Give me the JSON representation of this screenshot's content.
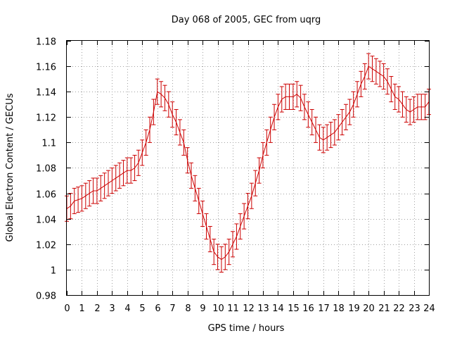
{
  "chart_data": {
    "type": "line",
    "title": "Day 068 of 2005, GEC from uqrg",
    "xlabel": "GPS time / hours",
    "ylabel": "Global Electron Content / GECUs",
    "xlim": [
      0,
      24
    ],
    "ylim": [
      0.98,
      1.18
    ],
    "xticks": [
      "0",
      "1",
      "2",
      "3",
      "4",
      "5",
      "6",
      "7",
      "8",
      "9",
      "10",
      "11",
      "12",
      "13",
      "14",
      "15",
      "16",
      "17",
      "18",
      "19",
      "20",
      "21",
      "22",
      "23",
      "24"
    ],
    "yticks": [
      "0.98",
      "1",
      "1.02",
      "1.04",
      "1.06",
      "1.08",
      "1.1",
      "1.12",
      "1.14",
      "1.16",
      "1.18"
    ],
    "grid": true,
    "legend": "none",
    "error_bars": true,
    "series_color": "#cc0000",
    "series": [
      {
        "x": [
          0,
          0.25,
          0.5,
          0.75,
          1,
          1.25,
          1.5,
          1.75,
          2,
          2.25,
          2.5,
          2.75,
          3,
          3.25,
          3.5,
          3.75,
          4,
          4.25,
          4.5,
          4.75,
          5,
          5.25,
          5.5,
          5.75,
          6,
          6.25,
          6.5,
          6.75,
          7,
          7.25,
          7.5,
          7.75,
          8,
          8.25,
          8.5,
          8.75,
          9,
          9.25,
          9.5,
          9.75,
          10,
          10.25,
          10.5,
          10.75,
          11,
          11.25,
          11.5,
          11.75,
          12,
          12.25,
          12.5,
          12.75,
          13,
          13.25,
          13.5,
          13.75,
          14,
          14.25,
          14.5,
          14.75,
          15,
          15.25,
          15.5,
          15.75,
          16,
          16.25,
          16.5,
          16.75,
          17,
          17.25,
          17.5,
          17.75,
          18,
          18.25,
          18.5,
          18.75,
          19,
          19.25,
          19.5,
          19.75,
          20,
          20.25,
          20.5,
          20.75,
          21,
          21.25,
          21.5,
          21.75,
          22,
          22.25,
          22.5,
          22.75,
          23,
          23.25,
          23.5,
          23.75,
          24
        ],
        "values": [
          1.048,
          1.05,
          1.054,
          1.055,
          1.056,
          1.058,
          1.06,
          1.062,
          1.062,
          1.064,
          1.066,
          1.068,
          1.07,
          1.072,
          1.074,
          1.076,
          1.078,
          1.078,
          1.08,
          1.084,
          1.092,
          1.1,
          1.11,
          1.124,
          1.14,
          1.138,
          1.135,
          1.13,
          1.122,
          1.116,
          1.108,
          1.1,
          1.086,
          1.074,
          1.064,
          1.054,
          1.044,
          1.034,
          1.024,
          1.014,
          1.01,
          1.008,
          1.01,
          1.014,
          1.02,
          1.026,
          1.034,
          1.042,
          1.05,
          1.058,
          1.068,
          1.078,
          1.09,
          1.1,
          1.11,
          1.12,
          1.128,
          1.134,
          1.136,
          1.136,
          1.136,
          1.138,
          1.135,
          1.128,
          1.122,
          1.116,
          1.11,
          1.104,
          1.102,
          1.104,
          1.106,
          1.108,
          1.112,
          1.116,
          1.12,
          1.124,
          1.13,
          1.138,
          1.146,
          1.152,
          1.16,
          1.158,
          1.156,
          1.154,
          1.152,
          1.148,
          1.142,
          1.136,
          1.134,
          1.13,
          1.126,
          1.124,
          1.126,
          1.128,
          1.128,
          1.128,
          1.132
        ],
        "errors": [
          0.01,
          0.01,
          0.01,
          0.01,
          0.01,
          0.01,
          0.01,
          0.01,
          0.01,
          0.01,
          0.01,
          0.01,
          0.01,
          0.01,
          0.01,
          0.01,
          0.01,
          0.01,
          0.01,
          0.01,
          0.01,
          0.01,
          0.01,
          0.01,
          0.01,
          0.01,
          0.01,
          0.01,
          0.01,
          0.01,
          0.01,
          0.01,
          0.01,
          0.01,
          0.01,
          0.01,
          0.01,
          0.01,
          0.01,
          0.01,
          0.01,
          0.01,
          0.01,
          0.01,
          0.01,
          0.01,
          0.01,
          0.01,
          0.01,
          0.01,
          0.01,
          0.01,
          0.01,
          0.01,
          0.01,
          0.01,
          0.01,
          0.01,
          0.01,
          0.01,
          0.01,
          0.01,
          0.01,
          0.01,
          0.01,
          0.01,
          0.01,
          0.01,
          0.01,
          0.01,
          0.01,
          0.01,
          0.01,
          0.01,
          0.01,
          0.01,
          0.01,
          0.01,
          0.01,
          0.01,
          0.01,
          0.01,
          0.01,
          0.01,
          0.01,
          0.01,
          0.01,
          0.01,
          0.01,
          0.01,
          0.01,
          0.01,
          0.01,
          0.01,
          0.01,
          0.01,
          0.01
        ]
      }
    ]
  }
}
